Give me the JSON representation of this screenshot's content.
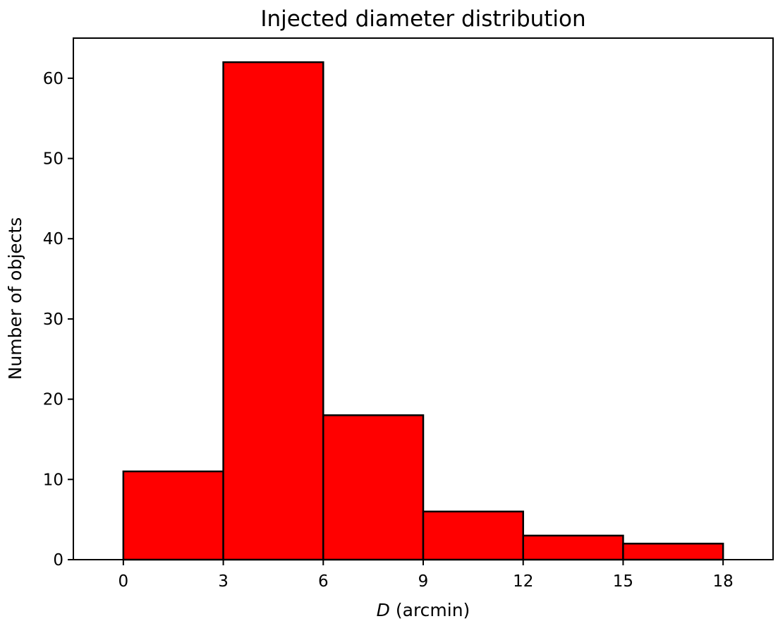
{
  "chart_data": {
    "type": "bar",
    "title": "Injected diameter distribution",
    "xlabel_var": "D",
    "xlabel_unit": " (arcmin)",
    "ylabel": "Number of objects",
    "bin_edges": [
      0,
      3,
      6,
      9,
      12,
      15,
      18
    ],
    "values": [
      11,
      62,
      18,
      6,
      3,
      2
    ],
    "xlim": [
      -1.5,
      19.5
    ],
    "ylim": [
      0,
      65
    ],
    "xticks": [
      0,
      3,
      6,
      9,
      12,
      15,
      18
    ],
    "yticks": [
      0,
      10,
      20,
      30,
      40,
      50,
      60
    ],
    "bar_color": "#ff0000",
    "edge_color": "#000000",
    "grid": false
  }
}
